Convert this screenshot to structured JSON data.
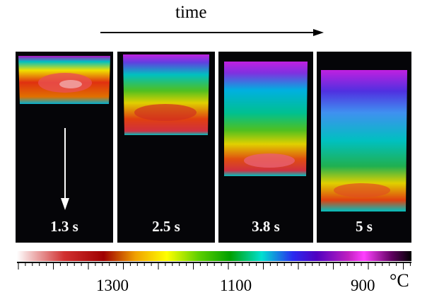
{
  "header": {
    "time_label": "time"
  },
  "panels": [
    {
      "label": "1.3 s"
    },
    {
      "label": "2.5 s"
    },
    {
      "label": "3.8 s"
    },
    {
      "label": "5 s"
    }
  ],
  "scale": {
    "tick_labels": [
      "1300",
      "1100",
      "900"
    ],
    "unit": "°C"
  },
  "colors": {
    "panel_background": "#050508",
    "hot": "#d13030",
    "cool": "#5000c0"
  }
}
